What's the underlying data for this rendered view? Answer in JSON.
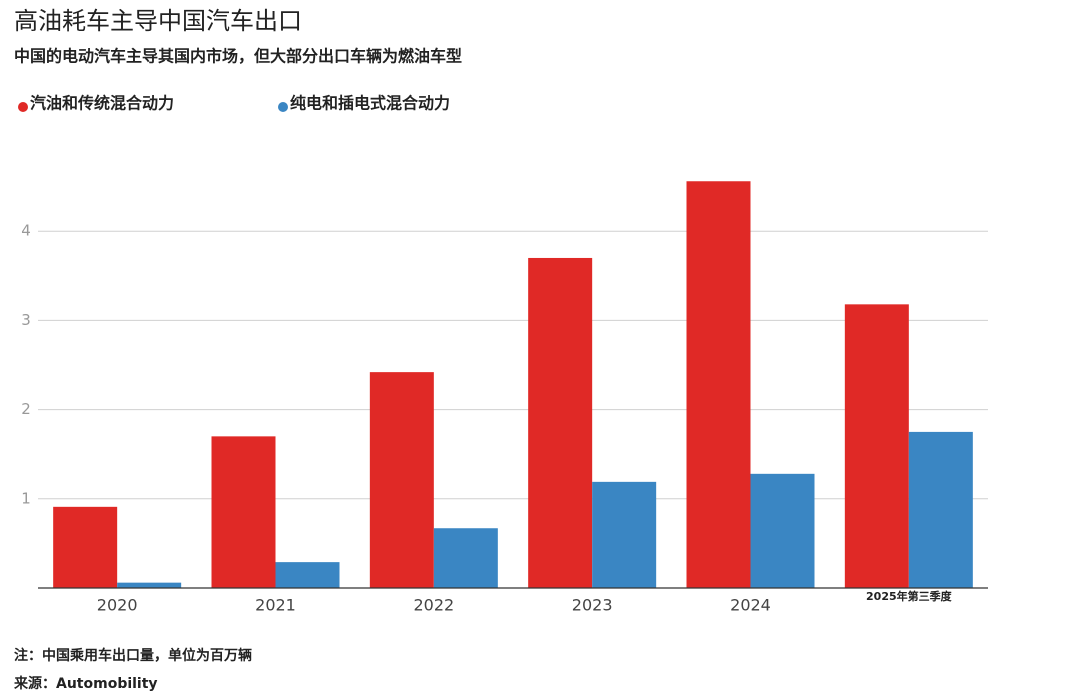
{
  "chart_data": {
    "type": "bar",
    "title": "高油耗车主导中国汽车出口",
    "subtitle": "中国的电动汽车主导其国内市场，但大部分出口车辆为燃油车型",
    "categories": [
      "2020",
      "2021",
      "2022",
      "2023",
      "2024",
      "2025年第三季度"
    ],
    "series": [
      {
        "name": "汽油和传统混合动力",
        "color": "#e02926",
        "values": [
          0.91,
          1.7,
          2.42,
          3.7,
          4.56,
          3.18
        ]
      },
      {
        "name": "纯电和插电式混合动力",
        "color": "#3a86c3",
        "values": [
          0.06,
          0.29,
          0.67,
          1.19,
          1.28,
          1.75
        ]
      }
    ],
    "ylim": [
      0,
      5
    ],
    "yticks": [
      1,
      2,
      3,
      4
    ],
    "grid": true,
    "legend": "top-left",
    "note": "注：中国乘用车出口量，单位为百万辆",
    "source": "来源：Automobility"
  }
}
